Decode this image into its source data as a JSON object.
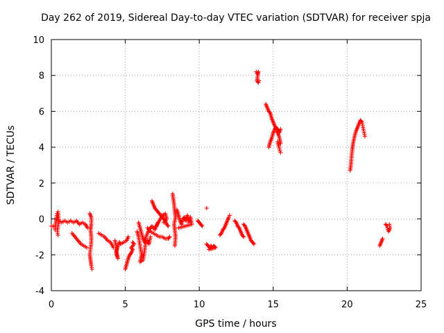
{
  "chart_data": {
    "type": "scatter",
    "title": "Day 262 of 2019, Sidereal Day-to-day VTEC variation (SDTVAR) for receiver spja",
    "xlabel": "GPS time / hours",
    "ylabel": "SDTVAR / TECUs",
    "xlim": [
      0,
      25
    ],
    "ylim": [
      -4,
      10
    ],
    "xticks": [
      0,
      5,
      10,
      15,
      20,
      25
    ],
    "yticks": [
      -4,
      -2,
      0,
      2,
      4,
      6,
      8,
      10
    ],
    "xtick_labels": [
      "0",
      "5",
      "10",
      "15",
      "20",
      "25"
    ],
    "ytick_labels": [
      "-4",
      "-2",
      "0",
      "2",
      "4",
      "6",
      "8",
      "10"
    ],
    "grid": true,
    "marker": "+",
    "series": [
      {
        "name": "SDTVAR",
        "color": "#ff0000",
        "segments": [
          [
            [
              0.0,
              -0.4
            ],
            [
              0.1,
              -0.4
            ]
          ],
          [
            [
              0.25,
              -0.6
            ],
            [
              0.3,
              -0.2
            ],
            [
              0.35,
              0.1
            ],
            [
              0.4,
              0.3
            ],
            [
              0.45,
              0.4
            ],
            [
              0.5,
              -0.1
            ],
            [
              0.4,
              -0.7
            ],
            [
              0.45,
              -0.9
            ]
          ],
          [
            [
              0.5,
              -0.1
            ],
            [
              0.7,
              -0.2
            ],
            [
              0.9,
              -0.1
            ],
            [
              1.1,
              -0.2
            ],
            [
              1.3,
              -0.1
            ],
            [
              1.5,
              -0.2
            ],
            [
              1.7,
              -0.1
            ],
            [
              1.9,
              -0.3
            ],
            [
              2.1,
              -0.2
            ],
            [
              2.3,
              -0.3
            ],
            [
              2.45,
              -0.5
            ]
          ],
          [
            [
              1.4,
              -0.8
            ],
            [
              1.6,
              -1.0
            ],
            [
              1.8,
              -1.2
            ],
            [
              2.0,
              -1.4
            ],
            [
              2.2,
              -1.5
            ],
            [
              2.4,
              -1.6
            ]
          ],
          [
            [
              2.6,
              0.3
            ],
            [
              2.7,
              0.1
            ],
            [
              2.7,
              -0.3
            ],
            [
              2.65,
              -0.6
            ],
            [
              2.7,
              -1.0
            ],
            [
              2.7,
              -1.3
            ],
            [
              2.6,
              -2.0
            ],
            [
              2.65,
              -2.3
            ],
            [
              2.7,
              -2.6
            ],
            [
              2.75,
              -2.8
            ]
          ],
          [
            [
              3.2,
              -0.8
            ],
            [
              3.4,
              -0.9
            ],
            [
              3.6,
              -1.0
            ],
            [
              3.8,
              -1.2
            ],
            [
              4.0,
              -1.3
            ],
            [
              4.2,
              -1.6
            ]
          ],
          [
            [
              4.3,
              -1.2
            ],
            [
              4.4,
              -1.6
            ],
            [
              4.4,
              -2.0
            ],
            [
              4.5,
              -2.2
            ],
            [
              4.4,
              -1.8
            ],
            [
              4.6,
              -1.3
            ],
            [
              4.7,
              -1.4
            ],
            [
              4.9,
              -1.3
            ],
            [
              5.1,
              -1.2
            ],
            [
              5.2,
              -1.0
            ]
          ],
          [
            [
              5.0,
              -2.8
            ],
            [
              5.1,
              -2.5
            ],
            [
              5.2,
              -2.2
            ],
            [
              5.3,
              -2.0
            ],
            [
              5.4,
              -1.9
            ],
            [
              5.5,
              -1.7
            ],
            [
              5.4,
              -1.6
            ],
            [
              5.6,
              -1.4
            ],
            [
              5.5,
              -1.3
            ]
          ],
          [
            [
              5.8,
              -0.7
            ],
            [
              5.9,
              -1.0
            ],
            [
              6.0,
              -1.5
            ],
            [
              6.1,
              -2.0
            ],
            [
              6.0,
              -2.4
            ],
            [
              6.2,
              -2.3
            ],
            [
              6.3,
              -1.8
            ],
            [
              6.4,
              -1.2
            ],
            [
              6.5,
              -1.2
            ],
            [
              6.6,
              -1.4
            ],
            [
              6.7,
              -1.0
            ]
          ],
          [
            [
              5.9,
              -0.2
            ],
            [
              6.0,
              -0.5
            ],
            [
              6.1,
              -0.8
            ],
            [
              6.2,
              -1.1
            ],
            [
              6.3,
              -1.3
            ],
            [
              6.4,
              -1.0
            ],
            [
              6.6,
              -0.6
            ],
            [
              6.8,
              -0.4
            ],
            [
              7.0,
              -0.6
            ],
            [
              7.2,
              -0.2
            ]
          ],
          [
            [
              6.5,
              -0.5
            ],
            [
              6.7,
              -0.7
            ],
            [
              6.9,
              -0.8
            ],
            [
              7.1,
              -0.9
            ],
            [
              7.3,
              -1.0
            ],
            [
              7.5,
              -1.0
            ],
            [
              7.7,
              -1.1
            ],
            [
              7.9,
              -1.1
            ],
            [
              8.0,
              -1.0
            ]
          ],
          [
            [
              6.8,
              1.0
            ],
            [
              6.9,
              0.8
            ],
            [
              7.0,
              0.6
            ],
            [
              7.1,
              0.5
            ],
            [
              7.2,
              0.4
            ],
            [
              7.3,
              0.3
            ],
            [
              7.4,
              0.2
            ],
            [
              7.5,
              0.1
            ],
            [
              7.6,
              0.0
            ],
            [
              7.7,
              -0.1
            ],
            [
              7.8,
              -0.3
            ],
            [
              7.9,
              -0.4
            ]
          ],
          [
            [
              7.1,
              -0.4
            ],
            [
              7.3,
              -0.1
            ],
            [
              7.5,
              0.2
            ],
            [
              7.7,
              0.3
            ],
            [
              7.8,
              0.0
            ],
            [
              7.6,
              -0.2
            ]
          ],
          [
            [
              8.2,
              1.4
            ],
            [
              8.25,
              1.1
            ],
            [
              8.3,
              0.8
            ],
            [
              8.35,
              0.4
            ],
            [
              8.4,
              0.1
            ],
            [
              8.3,
              -0.3
            ],
            [
              8.35,
              -0.6
            ],
            [
              8.4,
              -1.0
            ],
            [
              8.35,
              -1.5
            ]
          ],
          [
            [
              8.5,
              0.5
            ],
            [
              8.6,
              0.2
            ],
            [
              8.7,
              -0.1
            ],
            [
              8.8,
              -0.3
            ],
            [
              8.9,
              0.0
            ],
            [
              9.0,
              0.1
            ],
            [
              9.1,
              -0.1
            ],
            [
              9.2,
              0.2
            ],
            [
              9.3,
              -0.2
            ],
            [
              9.4,
              0.1
            ],
            [
              9.5,
              -0.3
            ],
            [
              8.6,
              -0.5
            ]
          ],
          [
            [
              9.9,
              -0.1
            ],
            [
              10.0,
              -0.2
            ],
            [
              10.1,
              -0.3
            ],
            [
              10.2,
              -0.4
            ]
          ],
          [
            [
              10.5,
              0.6
            ]
          ],
          [
            [
              10.5,
              -1.4
            ],
            [
              10.6,
              -1.5
            ],
            [
              10.7,
              -1.6
            ],
            [
              10.8,
              -1.5
            ],
            [
              10.9,
              -1.6
            ],
            [
              11.0,
              -1.5
            ],
            [
              11.1,
              -1.6
            ],
            [
              10.65,
              -1.7
            ]
          ],
          [
            [
              11.4,
              -0.9
            ],
            [
              11.5,
              -0.8
            ],
            [
              11.6,
              -0.6
            ],
            [
              11.7,
              -0.5
            ],
            [
              11.8,
              -0.3
            ],
            [
              11.9,
              -0.1
            ],
            [
              12.0,
              0.1
            ],
            [
              12.05,
              0.2
            ]
          ],
          [
            [
              12.4,
              -0.1
            ],
            [
              12.5,
              -0.2
            ],
            [
              12.6,
              -0.4
            ],
            [
              12.7,
              -0.5
            ],
            [
              12.8,
              -0.7
            ],
            [
              12.9,
              -0.9
            ],
            [
              13.0,
              -1.0
            ]
          ],
          [
            [
              13.0,
              -0.3
            ],
            [
              13.1,
              -0.4
            ],
            [
              13.2,
              -0.6
            ],
            [
              13.3,
              -0.8
            ],
            [
              13.4,
              -1.0
            ],
            [
              13.5,
              -1.2
            ],
            [
              13.6,
              -1.3
            ],
            [
              13.7,
              -1.4
            ]
          ],
          [
            [
              13.85,
              8.2
            ],
            [
              13.9,
              8.1
            ],
            [
              14.0,
              8.2
            ],
            [
              13.9,
              7.7
            ],
            [
              14.0,
              7.6
            ],
            [
              14.05,
              7.7
            ]
          ],
          [
            [
              14.5,
              6.4
            ],
            [
              14.6,
              6.2
            ],
            [
              14.7,
              6.0
            ],
            [
              14.8,
              5.9
            ],
            [
              14.9,
              5.6
            ],
            [
              15.0,
              5.4
            ],
            [
              15.1,
              5.2
            ],
            [
              15.2,
              5.0
            ],
            [
              15.3,
              4.8
            ],
            [
              15.4,
              4.6
            ],
            [
              15.5,
              4.2
            ]
          ],
          [
            [
              14.7,
              4.0
            ],
            [
              14.8,
              4.3
            ],
            [
              14.9,
              4.5
            ],
            [
              15.0,
              4.8
            ],
            [
              15.1,
              5.0
            ],
            [
              15.2,
              5.1
            ],
            [
              15.3,
              5.0
            ],
            [
              15.4,
              4.8
            ],
            [
              15.5,
              5.0
            ]
          ],
          [
            [
              15.3,
              4.3
            ],
            [
              15.4,
              4.0
            ],
            [
              15.45,
              3.8
            ],
            [
              15.5,
              3.7
            ]
          ],
          [
            [
              20.2,
              2.7
            ],
            [
              20.25,
              3.0
            ],
            [
              20.3,
              3.5
            ],
            [
              20.35,
              3.9
            ],
            [
              20.4,
              4.2
            ],
            [
              20.5,
              4.6
            ],
            [
              20.6,
              4.9
            ],
            [
              20.7,
              5.1
            ],
            [
              20.8,
              5.3
            ],
            [
              20.9,
              5.5
            ],
            [
              21.0,
              5.4
            ],
            [
              21.05,
              5.2
            ],
            [
              21.1,
              5.0
            ],
            [
              21.15,
              4.8
            ],
            [
              21.2,
              4.6
            ]
          ],
          [
            [
              22.2,
              -1.5
            ],
            [
              22.3,
              -1.3
            ],
            [
              22.4,
              -1.1
            ]
          ],
          [
            [
              22.6,
              -0.3
            ],
            [
              22.7,
              -0.4
            ],
            [
              22.75,
              -0.6
            ],
            [
              22.8,
              -0.7
            ],
            [
              22.9,
              -0.5
            ],
            [
              22.85,
              -0.3
            ]
          ]
        ]
      }
    ]
  }
}
